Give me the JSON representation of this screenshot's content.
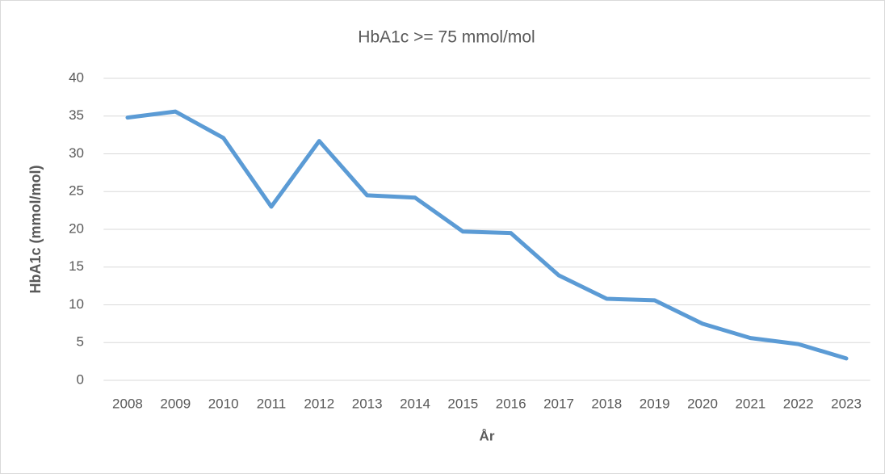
{
  "chart_data": {
    "type": "line",
    "title": "HbA1c >= 75 mmol/mol",
    "x_label": "År",
    "y_label": "HbA1c (mmol/mol)",
    "categories": [
      "2008",
      "2009",
      "2010",
      "2011",
      "2012",
      "2013",
      "2014",
      "2015",
      "2016",
      "2017",
      "2018",
      "2019",
      "2020",
      "2021",
      "2022",
      "2023"
    ],
    "series": [
      {
        "name": "HbA1c >= 75 mmol/mol",
        "color": "#5b9bd5",
        "values": [
          34.8,
          35.6,
          32.1,
          23.0,
          31.7,
          24.5,
          24.2,
          19.7,
          19.5,
          13.9,
          10.8,
          10.6,
          7.5,
          5.6,
          4.8,
          2.9
        ]
      }
    ],
    "ylim": [
      0,
      40
    ],
    "yticks": [
      0,
      5,
      10,
      15,
      20,
      25,
      30,
      35,
      40
    ],
    "grid": true
  }
}
